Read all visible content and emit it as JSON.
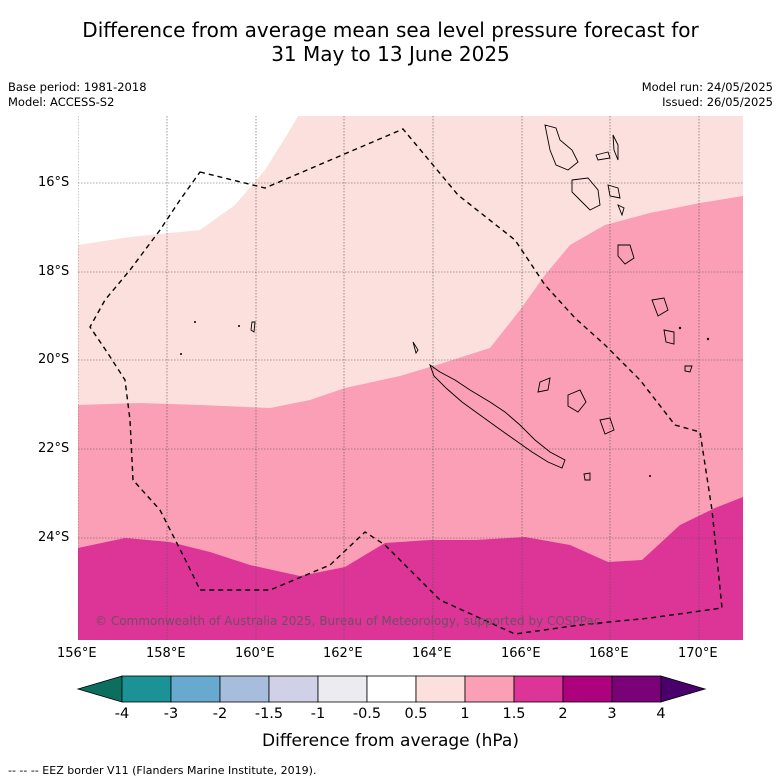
{
  "title_line1": "Difference from average mean sea level pressure forecast for",
  "title_line2": "31 May to 13 June 2025",
  "meta_left": [
    "Base period: 1981-2018",
    "Model: ACCESS-S2"
  ],
  "meta_right": [
    "Model run: 24/05/2025",
    "Issued: 26/05/2025"
  ],
  "lat_labels": [
    "16°S",
    "18°S",
    "20°S",
    "22°S",
    "24°S"
  ],
  "lon_labels": [
    "156°E",
    "158°E",
    "160°E",
    "162°E",
    "164°E",
    "166°E",
    "168°E",
    "170°E"
  ],
  "copyright": "© Commonwealth of Australia 2025, Bureau of Meteorology, supported by COSPPac",
  "colorbar": {
    "title": "Difference from average (hPa)",
    "labels": [
      "-4",
      "-3",
      "-2",
      "-1.5",
      "-1",
      "-0.5",
      "0.5",
      "1",
      "1.5",
      "2",
      "3",
      "4"
    ],
    "colors": [
      "#0b6e5f",
      "#1a9296",
      "#67a9cf",
      "#a6bddb",
      "#d0d1e6",
      "#ececf0",
      "#ffffff",
      "#fce0dd",
      "#fa9fb5",
      "#dd3497",
      "#ae017e",
      "#7a0177",
      "#49006a"
    ]
  },
  "footer": "--  --  -- EEZ border V11 (Flanders Marine Institute, 2019).",
  "map_colors": {
    "level_05_1": "#fce0dd",
    "level_1_15": "#fa9fb5",
    "level_15_2": "#dd3497"
  }
}
